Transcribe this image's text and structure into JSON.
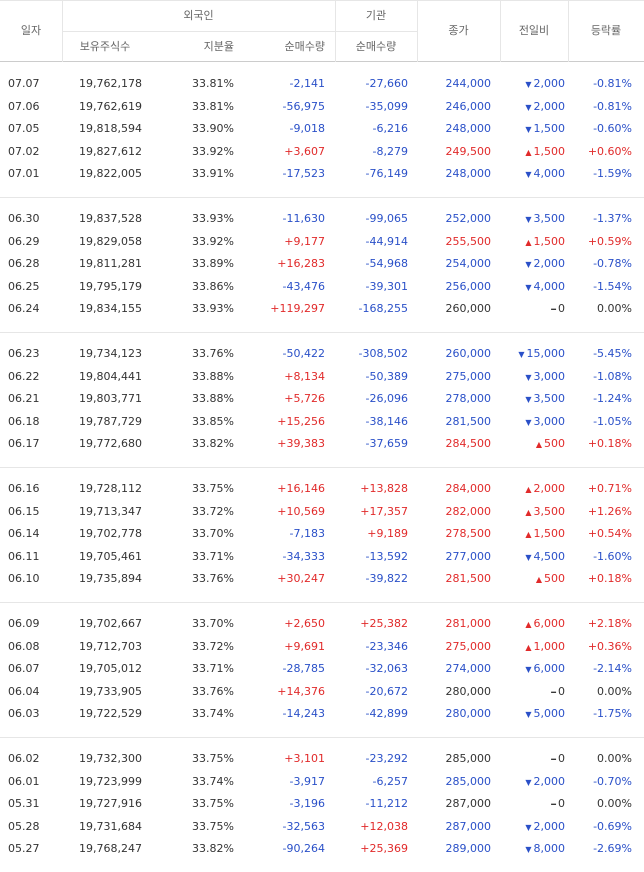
{
  "header": {
    "date": "일자",
    "foreign": "외국인",
    "holdings": "보유주식수",
    "ratio": "지분율",
    "foreign_net": "순매수량",
    "institution": "기관",
    "institution_net": "순매수량",
    "close": "종가",
    "change": "전일비",
    "rate": "등락률"
  },
  "groups": [
    {
      "rows": [
        [
          "07.07",
          "19,762,178",
          "33.81%",
          "-2,141",
          "-27,660",
          "244,000",
          "down",
          "2,000",
          "-0.81%"
        ],
        [
          "07.06",
          "19,762,619",
          "33.81%",
          "-56,975",
          "-35,099",
          "246,000",
          "down",
          "2,000",
          "-0.81%"
        ],
        [
          "07.05",
          "19,818,594",
          "33.90%",
          "-9,018",
          "-6,216",
          "248,000",
          "down",
          "1,500",
          "-0.60%"
        ],
        [
          "07.02",
          "19,827,612",
          "33.92%",
          "+3,607",
          "-8,279",
          "249,500",
          "up",
          "1,500",
          "+0.60%"
        ],
        [
          "07.01",
          "19,822,005",
          "33.91%",
          "-17,523",
          "-76,149",
          "248,000",
          "down",
          "4,000",
          "-1.59%"
        ]
      ]
    },
    {
      "rows": [
        [
          "06.30",
          "19,837,528",
          "33.93%",
          "-11,630",
          "-99,065",
          "252,000",
          "down",
          "3,500",
          "-1.37%"
        ],
        [
          "06.29",
          "19,829,058",
          "33.92%",
          "+9,177",
          "-44,914",
          "255,500",
          "up",
          "1,500",
          "+0.59%"
        ],
        [
          "06.28",
          "19,811,281",
          "33.89%",
          "+16,283",
          "-54,968",
          "254,000",
          "down",
          "2,000",
          "-0.78%"
        ],
        [
          "06.25",
          "19,795,179",
          "33.86%",
          "-43,476",
          "-39,301",
          "256,000",
          "down",
          "4,000",
          "-1.54%"
        ],
        [
          "06.24",
          "19,834,155",
          "33.93%",
          "+119,297",
          "-168,255",
          "260,000",
          "flat",
          "0",
          "0.00%"
        ]
      ]
    },
    {
      "rows": [
        [
          "06.23",
          "19,734,123",
          "33.76%",
          "-50,422",
          "-308,502",
          "260,000",
          "down",
          "15,000",
          "-5.45%"
        ],
        [
          "06.22",
          "19,804,441",
          "33.88%",
          "+8,134",
          "-50,389",
          "275,000",
          "down",
          "3,000",
          "-1.08%"
        ],
        [
          "06.21",
          "19,803,771",
          "33.88%",
          "+5,726",
          "-26,096",
          "278,000",
          "down",
          "3,500",
          "-1.24%"
        ],
        [
          "06.18",
          "19,787,729",
          "33.85%",
          "+15,256",
          "-38,146",
          "281,500",
          "down",
          "3,000",
          "-1.05%"
        ],
        [
          "06.17",
          "19,772,680",
          "33.82%",
          "+39,383",
          "-37,659",
          "284,500",
          "up",
          "500",
          "+0.18%"
        ]
      ]
    },
    {
      "rows": [
        [
          "06.16",
          "19,728,112",
          "33.75%",
          "+16,146",
          "+13,828",
          "284,000",
          "up",
          "2,000",
          "+0.71%"
        ],
        [
          "06.15",
          "19,713,347",
          "33.72%",
          "+10,569",
          "+17,357",
          "282,000",
          "up",
          "3,500",
          "+1.26%"
        ],
        [
          "06.14",
          "19,702,778",
          "33.70%",
          "-7,183",
          "+9,189",
          "278,500",
          "up",
          "1,500",
          "+0.54%"
        ],
        [
          "06.11",
          "19,705,461",
          "33.71%",
          "-34,333",
          "-13,592",
          "277,000",
          "down",
          "4,500",
          "-1.60%"
        ],
        [
          "06.10",
          "19,735,894",
          "33.76%",
          "+30,247",
          "-39,822",
          "281,500",
          "up",
          "500",
          "+0.18%"
        ]
      ]
    },
    {
      "rows": [
        [
          "06.09",
          "19,702,667",
          "33.70%",
          "+2,650",
          "+25,382",
          "281,000",
          "up",
          "6,000",
          "+2.18%"
        ],
        [
          "06.08",
          "19,712,703",
          "33.72%",
          "+9,691",
          "-23,346",
          "275,000",
          "up",
          "1,000",
          "+0.36%"
        ],
        [
          "06.07",
          "19,705,012",
          "33.71%",
          "-28,785",
          "-32,063",
          "274,000",
          "down",
          "6,000",
          "-2.14%"
        ],
        [
          "06.04",
          "19,733,905",
          "33.76%",
          "+14,376",
          "-20,672",
          "280,000",
          "flat",
          "0",
          "0.00%"
        ],
        [
          "06.03",
          "19,722,529",
          "33.74%",
          "-14,243",
          "-42,899",
          "280,000",
          "down",
          "5,000",
          "-1.75%"
        ]
      ]
    },
    {
      "rows": [
        [
          "06.02",
          "19,732,300",
          "33.75%",
          "+3,101",
          "-23,292",
          "285,000",
          "flat",
          "0",
          "0.00%"
        ],
        [
          "06.01",
          "19,723,999",
          "33.74%",
          "-3,917",
          "-6,257",
          "285,000",
          "down",
          "2,000",
          "-0.70%"
        ],
        [
          "05.31",
          "19,727,916",
          "33.75%",
          "-3,196",
          "-11,212",
          "287,000",
          "flat",
          "0",
          "0.00%"
        ],
        [
          "05.28",
          "19,731,684",
          "33.75%",
          "-32,563",
          "+12,038",
          "287,000",
          "down",
          "2,000",
          "-0.69%"
        ],
        [
          "05.27",
          "19,768,247",
          "33.82%",
          "-90,264",
          "+25,369",
          "289,000",
          "down",
          "8,000",
          "-2.69%"
        ]
      ]
    }
  ]
}
